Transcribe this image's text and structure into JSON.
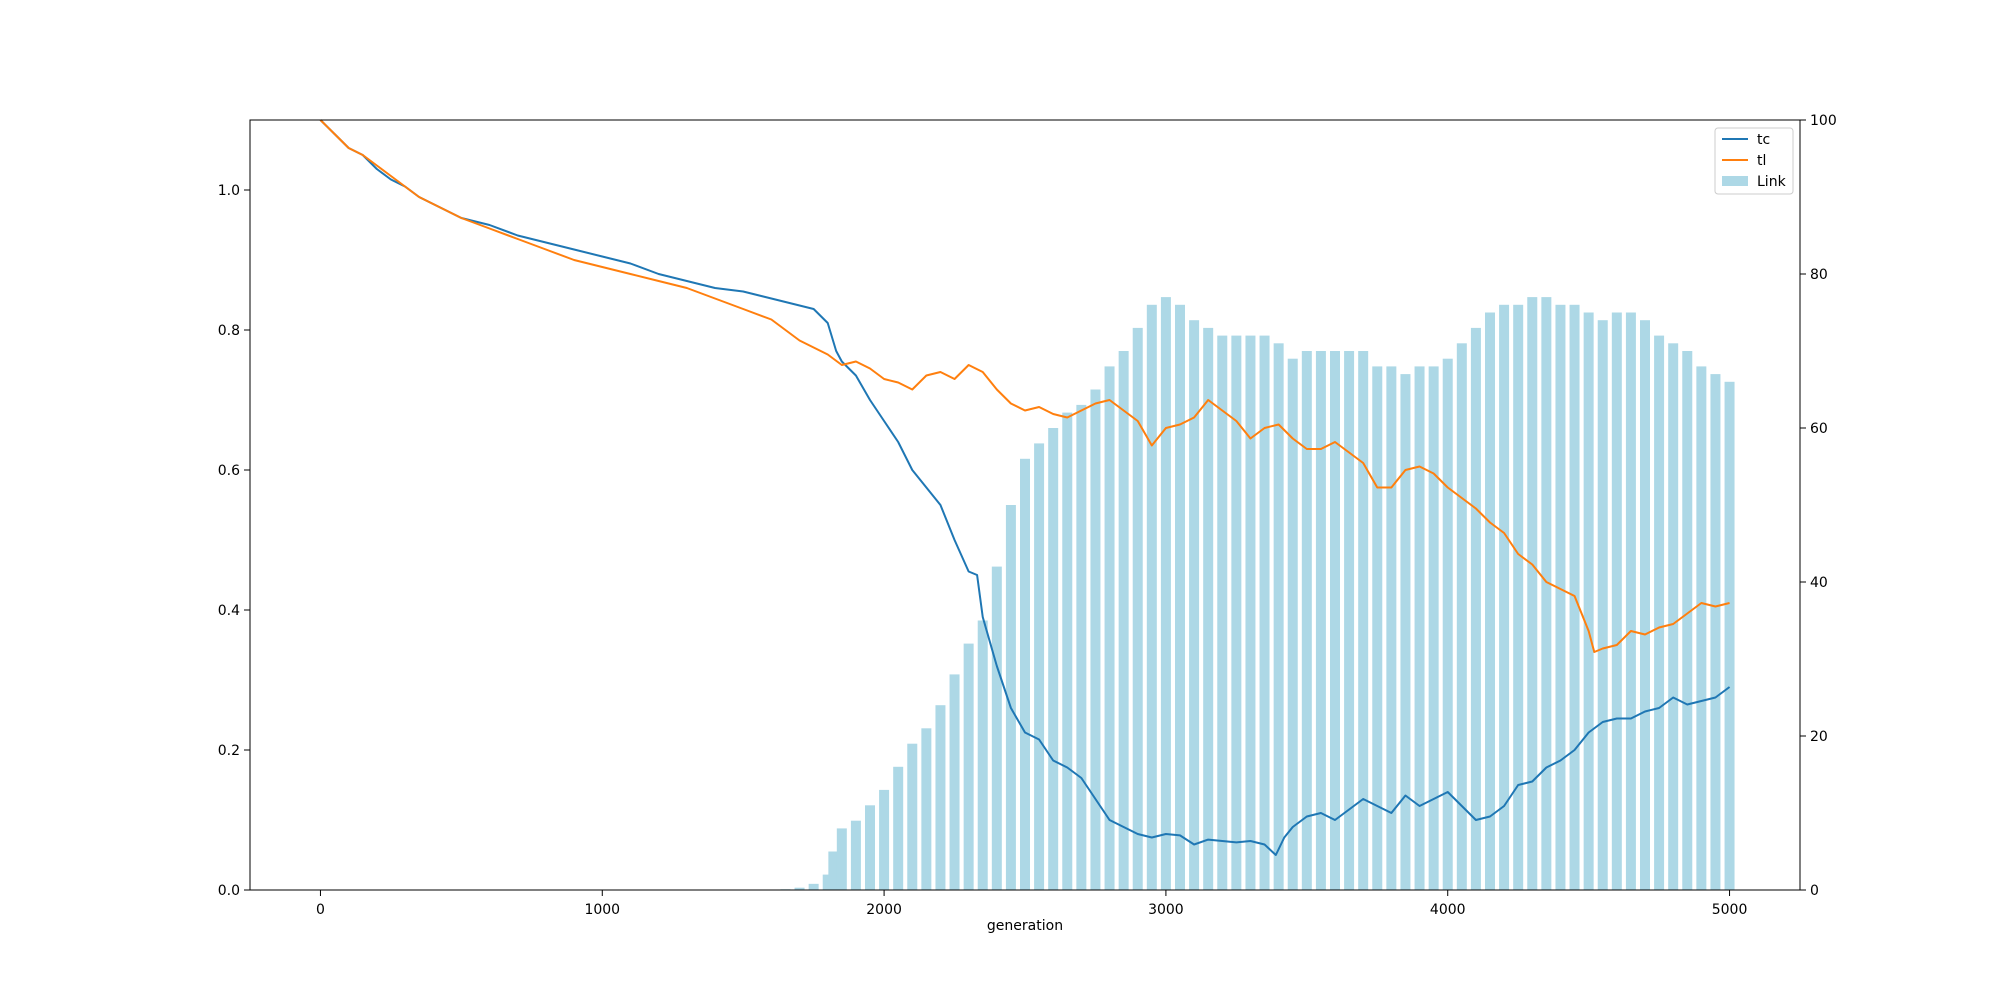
{
  "chart_data": {
    "type": "line",
    "xlabel": "generation",
    "xlim": [
      -250,
      5250
    ],
    "ylim_left": [
      0.0,
      1.1
    ],
    "ylim_right": [
      0,
      100
    ],
    "xticks": [
      0,
      1000,
      2000,
      3000,
      4000,
      5000
    ],
    "yticks_left": [
      0.0,
      0.2,
      0.4,
      0.6,
      0.8,
      1.0
    ],
    "yticks_right": [
      0,
      20,
      40,
      60,
      80,
      100
    ],
    "ytick_labels_left": [
      "0.0",
      "0.2",
      "0.4",
      "0.6",
      "0.8",
      "1.0"
    ],
    "ytick_labels_right": [
      "0",
      "20",
      "40",
      "60",
      "80",
      "100"
    ],
    "xtick_labels": [
      "0",
      "1000",
      "2000",
      "3000",
      "4000",
      "5000"
    ],
    "legend_position": "top-right",
    "grid": false,
    "series": [
      {
        "name": "tc",
        "kind": "line",
        "axis": "left",
        "color": "#1f77b4",
        "x": [
          0,
          50,
          100,
          150,
          200,
          250,
          300,
          350,
          400,
          450,
          500,
          600,
          700,
          800,
          900,
          1000,
          1100,
          1200,
          1300,
          1400,
          1500,
          1600,
          1700,
          1750,
          1800,
          1830,
          1850,
          1900,
          1950,
          2000,
          2050,
          2100,
          2150,
          2200,
          2250,
          2300,
          2330,
          2350,
          2400,
          2450,
          2500,
          2550,
          2600,
          2650,
          2700,
          2750,
          2800,
          2850,
          2900,
          2950,
          3000,
          3050,
          3100,
          3150,
          3200,
          3250,
          3300,
          3350,
          3390,
          3420,
          3450,
          3500,
          3550,
          3600,
          3650,
          3700,
          3750,
          3800,
          3850,
          3900,
          3950,
          4000,
          4050,
          4100,
          4150,
          4200,
          4250,
          4300,
          4350,
          4400,
          4450,
          4500,
          4550,
          4600,
          4650,
          4700,
          4750,
          4800,
          4850,
          4900,
          4950,
          5000
        ],
        "values": [
          1.1,
          1.08,
          1.06,
          1.05,
          1.03,
          1.015,
          1.005,
          0.99,
          0.98,
          0.97,
          0.96,
          0.95,
          0.935,
          0.925,
          0.915,
          0.905,
          0.895,
          0.88,
          0.87,
          0.86,
          0.855,
          0.845,
          0.835,
          0.83,
          0.81,
          0.77,
          0.755,
          0.735,
          0.7,
          0.67,
          0.64,
          0.6,
          0.575,
          0.55,
          0.5,
          0.455,
          0.45,
          0.39,
          0.32,
          0.26,
          0.225,
          0.215,
          0.185,
          0.175,
          0.16,
          0.13,
          0.1,
          0.09,
          0.08,
          0.075,
          0.08,
          0.078,
          0.065,
          0.072,
          0.07,
          0.068,
          0.07,
          0.065,
          0.05,
          0.075,
          0.09,
          0.105,
          0.11,
          0.1,
          0.115,
          0.13,
          0.12,
          0.11,
          0.135,
          0.12,
          0.13,
          0.14,
          0.12,
          0.1,
          0.105,
          0.12,
          0.15,
          0.155,
          0.175,
          0.185,
          0.2,
          0.225,
          0.24,
          0.245,
          0.245,
          0.255,
          0.26,
          0.275,
          0.265,
          0.27,
          0.275,
          0.29
        ]
      },
      {
        "name": "tl",
        "kind": "line",
        "axis": "left",
        "color": "#ff7f0e",
        "x": [
          0,
          50,
          100,
          150,
          200,
          250,
          300,
          350,
          400,
          450,
          500,
          600,
          700,
          800,
          900,
          1000,
          1100,
          1200,
          1300,
          1400,
          1500,
          1600,
          1650,
          1700,
          1800,
          1850,
          1900,
          1950,
          2000,
          2050,
          2100,
          2150,
          2200,
          2250,
          2300,
          2350,
          2400,
          2450,
          2500,
          2550,
          2600,
          2650,
          2700,
          2750,
          2800,
          2850,
          2900,
          2950,
          3000,
          3050,
          3100,
          3150,
          3200,
          3250,
          3300,
          3350,
          3400,
          3450,
          3500,
          3550,
          3600,
          3650,
          3700,
          3750,
          3800,
          3850,
          3900,
          3950,
          4000,
          4050,
          4100,
          4150,
          4200,
          4250,
          4300,
          4350,
          4400,
          4450,
          4500,
          4520,
          4550,
          4600,
          4650,
          4700,
          4750,
          4800,
          4850,
          4900,
          4950,
          5000
        ],
        "values": [
          1.1,
          1.08,
          1.06,
          1.05,
          1.035,
          1.02,
          1.005,
          0.99,
          0.98,
          0.97,
          0.96,
          0.945,
          0.93,
          0.915,
          0.9,
          0.89,
          0.88,
          0.87,
          0.86,
          0.845,
          0.83,
          0.815,
          0.8,
          0.785,
          0.765,
          0.75,
          0.755,
          0.745,
          0.73,
          0.725,
          0.715,
          0.735,
          0.74,
          0.73,
          0.75,
          0.74,
          0.715,
          0.695,
          0.685,
          0.69,
          0.68,
          0.675,
          0.685,
          0.695,
          0.7,
          0.685,
          0.67,
          0.635,
          0.66,
          0.665,
          0.675,
          0.7,
          0.685,
          0.67,
          0.645,
          0.66,
          0.665,
          0.645,
          0.63,
          0.63,
          0.64,
          0.625,
          0.61,
          0.575,
          0.575,
          0.6,
          0.605,
          0.595,
          0.575,
          0.56,
          0.545,
          0.525,
          0.51,
          0.48,
          0.465,
          0.44,
          0.43,
          0.42,
          0.37,
          0.34,
          0.345,
          0.35,
          0.37,
          0.365,
          0.375,
          0.38,
          0.395,
          0.41,
          0.405,
          0.41
        ]
      },
      {
        "name": "Link",
        "kind": "bar",
        "axis": "right",
        "color": "#add8e6",
        "x": [
          1600,
          1650,
          1700,
          1750,
          1800,
          1820,
          1850,
          1900,
          1950,
          2000,
          2050,
          2100,
          2150,
          2200,
          2250,
          2300,
          2350,
          2400,
          2450,
          2500,
          2550,
          2600,
          2650,
          2700,
          2750,
          2800,
          2850,
          2900,
          2950,
          3000,
          3050,
          3100,
          3150,
          3200,
          3250,
          3300,
          3350,
          3400,
          3450,
          3500,
          3550,
          3600,
          3650,
          3700,
          3750,
          3800,
          3850,
          3900,
          3950,
          4000,
          4050,
          4100,
          4150,
          4200,
          4250,
          4300,
          4350,
          4400,
          4450,
          4500,
          4550,
          4600,
          4650,
          4700,
          4750,
          4800,
          4850,
          4900,
          4950,
          5000
        ],
        "values": [
          0,
          0.1,
          0.3,
          0.8,
          2,
          5,
          8,
          9,
          11,
          13,
          16,
          19,
          21,
          24,
          28,
          32,
          35,
          42,
          50,
          56,
          58,
          60,
          62,
          63,
          65,
          68,
          70,
          73,
          76,
          77,
          76,
          74,
          73,
          72,
          72,
          72,
          72,
          71,
          69,
          70,
          70,
          70,
          70,
          70,
          68,
          68,
          67,
          68,
          68,
          69,
          71,
          73,
          75,
          76,
          76,
          77,
          77,
          76,
          76,
          75,
          74,
          75,
          75,
          74,
          72,
          71,
          70,
          68,
          67,
          66
        ]
      }
    ]
  }
}
